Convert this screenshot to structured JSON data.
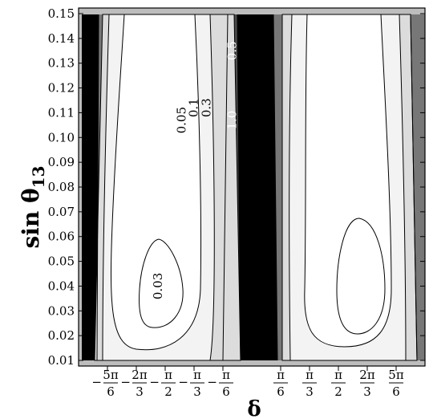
{
  "chart_data": {
    "type": "heatmap",
    "subtype": "filled-contour",
    "ylabel": "sin θ",
    "ylabel_sub": "13",
    "xlabel": "δ",
    "y_ticks": [
      "0.01",
      "0.02",
      "0.03",
      "0.04",
      "0.05",
      "0.06",
      "0.07",
      "0.08",
      "0.09",
      "0.10",
      "0.11",
      "0.12",
      "0.13",
      "0.14",
      "0.15"
    ],
    "ylim": [
      0.01,
      0.15
    ],
    "xlim_rad": [
      -3.1416,
      3.1416
    ],
    "x_ticks": [
      {
        "sign": "−",
        "num": "5π",
        "den": "6",
        "value": -2.618
      },
      {
        "sign": "−",
        "num": "2π",
        "den": "3",
        "value": -2.0944
      },
      {
        "sign": "−",
        "num": "π",
        "den": "2",
        "value": -1.5708
      },
      {
        "sign": "−",
        "num": "π",
        "den": "3",
        "value": -1.0472
      },
      {
        "sign": "−",
        "num": "π",
        "den": "6",
        "value": -0.5236
      },
      {
        "sign": "",
        "num": "π",
        "den": "6",
        "value": 0.5236
      },
      {
        "sign": "",
        "num": "π",
        "den": "3",
        "value": 1.0472
      },
      {
        "sign": "",
        "num": "π",
        "den": "2",
        "value": 1.5708
      },
      {
        "sign": "",
        "num": "2π",
        "den": "3",
        "value": 2.0944
      },
      {
        "sign": "",
        "num": "5π",
        "den": "6",
        "value": 2.618
      }
    ],
    "contour_levels": [
      "0.03",
      "0.05",
      "0.1",
      "0.3",
      "0.5",
      "1.0"
    ],
    "level_colors": [
      "#ffffff",
      "#f3f3f3",
      "#dcdcdc",
      "#bdbdbd",
      "#777777",
      "#4a4a4a",
      "#000000"
    ],
    "contour_labels": [
      {
        "text": "0.03",
        "delta": -1.63,
        "sin13": 0.04,
        "color": "#000000"
      },
      {
        "text": "0.05",
        "delta": -1.2,
        "sin13": 0.107,
        "color": "#000000"
      },
      {
        "text": "0.1",
        "delta": -0.98,
        "sin13": 0.112,
        "color": "#000000"
      },
      {
        "text": "0.3",
        "delta": -0.75,
        "sin13": 0.112,
        "color": "#000000"
      },
      {
        "text": "0.5",
        "delta": -0.28,
        "sin13": 0.135,
        "color": "#ffffff"
      },
      {
        "text": "1.0",
        "delta": -0.28,
        "sin13": 0.107,
        "color": "#ffffff"
      }
    ]
  }
}
